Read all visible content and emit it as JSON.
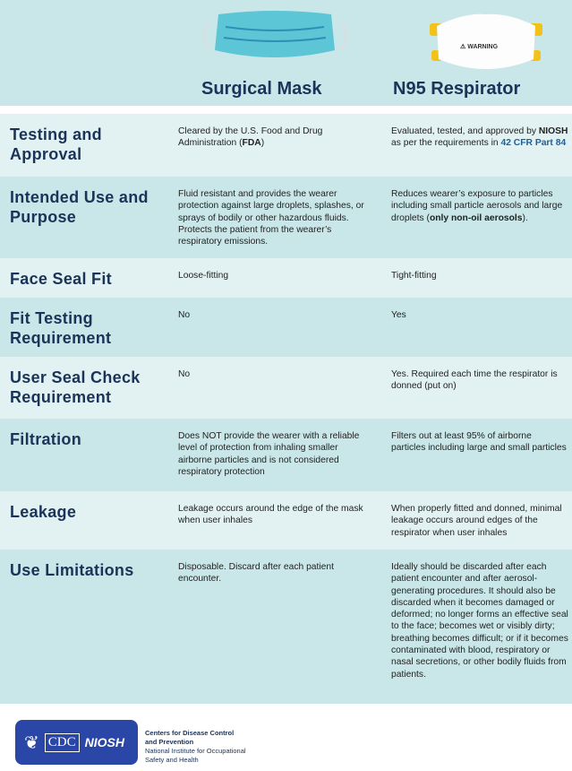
{
  "columns": {
    "surgical": "Surgical Mask",
    "n95": "N95 Respirator"
  },
  "n95_image": {
    "warning_text": "⚠ WARNING"
  },
  "rows": [
    {
      "label": "Testing and Approval",
      "surgical": [
        {
          "t": "Cleared by the U.S. Food and Drug Administration ("
        },
        {
          "t": "FDA",
          "b": true
        },
        {
          "t": ")"
        }
      ],
      "n95": [
        {
          "t": "Evaluated, tested, and approved by "
        },
        {
          "t": "NIOSH",
          "b": true
        },
        {
          "t": " as per the requirements in "
        },
        {
          "t": "42 CFR Part 84",
          "link": true
        }
      ]
    },
    {
      "label": "Intended Use and Purpose",
      "surgical": [
        {
          "t": "Fluid resistant and provides the wearer protection against large droplets, splashes, or sprays of bodily or other hazardous fluids. Protects the patient from the wearer’s respiratory emissions."
        }
      ],
      "n95": [
        {
          "t": "Reduces wearer’s exposure to particles including small particle aerosols and large droplets ("
        },
        {
          "t": "only non-oil aerosols",
          "b": true
        },
        {
          "t": ")."
        }
      ]
    },
    {
      "label": "Face Seal Fit",
      "surgical": [
        {
          "t": "Loose-fitting"
        }
      ],
      "n95": [
        {
          "t": "Tight-fitting"
        }
      ]
    },
    {
      "label": "Fit Testing Requirement",
      "surgical": [
        {
          "t": "No"
        }
      ],
      "n95": [
        {
          "t": "Yes"
        }
      ]
    },
    {
      "label": "User Seal Check Requirement",
      "surgical": [
        {
          "t": "No"
        }
      ],
      "n95": [
        {
          "t": "Yes. Required each time the respirator is donned (put on)"
        }
      ]
    },
    {
      "label": "Filtration",
      "surgical": [
        {
          "t": "Does NOT provide the wearer with a reliable level of protection from inhaling smaller airborne particles and is not considered respiratory protection"
        }
      ],
      "n95": [
        {
          "t": "Filters out at least 95% of airborne particles including large and small particles"
        }
      ]
    },
    {
      "label": "Leakage",
      "surgical": [
        {
          "t": "Leakage occurs around the edge of the mask when user inhales"
        }
      ],
      "n95": [
        {
          "t": "When properly fitted and donned, minimal leakage occurs around edges of the respirator when user inhales"
        }
      ]
    },
    {
      "label": "Use Limitations",
      "surgical": [
        {
          "t": "Disposable. Discard after each patient encounter."
        }
      ],
      "n95": [
        {
          "t": "Ideally should be discarded after each patient encounter and after aerosol-generating procedures. It should also be discarded when it becomes damaged or deformed; no longer forms an effective seal to the face; becomes wet or visibly dirty; breathing becomes difficult; or if it becomes contaminated with blood, respiratory or nasal secretions, or other bodily fluids from patients."
        }
      ]
    }
  ],
  "footer": {
    "cdc": "CDC",
    "niosh": "NIOSH",
    "org_line1": "Centers for Disease Control",
    "org_line2": "and Prevention",
    "org_line3": "National Institute for Occupational",
    "org_line4": "Safety and Health"
  },
  "colors": {
    "title": "#1b3358",
    "row_light": "#e2f2f2",
    "row_dark": "#c9e7e8",
    "link": "#1b5fa0",
    "logo": "#2a47a8"
  }
}
